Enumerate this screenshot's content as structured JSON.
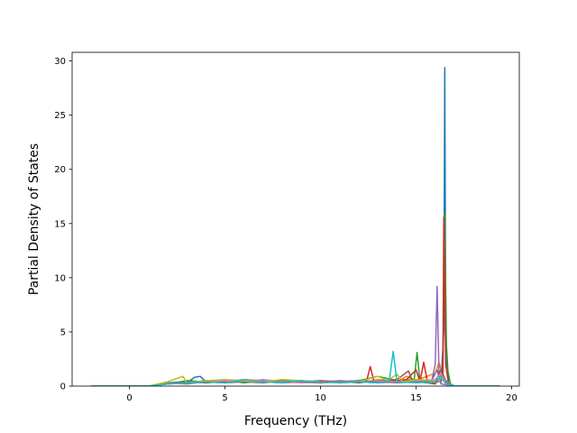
{
  "chart_data": {
    "type": "line",
    "title": "",
    "xlabel": "Frequency (THz)",
    "ylabel": "Partial Density of States",
    "xlim": [
      -3,
      20.4
    ],
    "ylim": [
      0,
      30.8
    ],
    "xticks": [
      0,
      5,
      10,
      15,
      20
    ],
    "yticks": [
      0,
      5,
      10,
      15,
      20,
      25,
      30
    ],
    "grid": false,
    "legend": "none",
    "series": [
      {
        "color": "#1f77b4",
        "points": [
          [
            -2,
            0
          ],
          [
            1,
            0
          ],
          [
            2,
            0.2
          ],
          [
            3,
            0.3
          ],
          [
            3.4,
            0.8
          ],
          [
            3.7,
            0.9
          ],
          [
            4,
            0.4
          ],
          [
            5,
            0.3
          ],
          [
            6,
            0.5
          ],
          [
            7,
            0.4
          ],
          [
            8,
            0.5
          ],
          [
            9,
            0.3
          ],
          [
            10,
            0.4
          ],
          [
            11,
            0.3
          ],
          [
            12,
            0.4
          ],
          [
            13,
            0.3
          ],
          [
            14,
            0.5
          ],
          [
            15,
            0.6
          ],
          [
            15.8,
            0.5
          ],
          [
            16.1,
            1.5
          ],
          [
            16.3,
            0.3
          ],
          [
            16.45,
            5
          ],
          [
            16.5,
            29.4
          ],
          [
            16.55,
            5
          ],
          [
            16.7,
            0.3
          ],
          [
            17,
            0
          ],
          [
            19.4,
            0
          ]
        ]
      },
      {
        "color": "#ff7f0e",
        "points": [
          [
            -2,
            0
          ],
          [
            1,
            0
          ],
          [
            2,
            0.3
          ],
          [
            3,
            0.4
          ],
          [
            4,
            0.3
          ],
          [
            5,
            0.4
          ],
          [
            6,
            0.6
          ],
          [
            7,
            0.5
          ],
          [
            8,
            0.4
          ],
          [
            9,
            0.3
          ],
          [
            10,
            0.4
          ],
          [
            11,
            0.5
          ],
          [
            12,
            0.3
          ],
          [
            13,
            0.6
          ],
          [
            14,
            0.4
          ],
          [
            14.5,
            0.9
          ],
          [
            15,
            0.5
          ],
          [
            16,
            1.2
          ],
          [
            16.2,
            2.2
          ],
          [
            16.4,
            0.8
          ],
          [
            16.6,
            0.2
          ],
          [
            17,
            0
          ],
          [
            19.4,
            0
          ]
        ]
      },
      {
        "color": "#2ca02c",
        "points": [
          [
            -2,
            0
          ],
          [
            1,
            0
          ],
          [
            2,
            0.2
          ],
          [
            3,
            0.5
          ],
          [
            4,
            0.4
          ],
          [
            5,
            0.5
          ],
          [
            6,
            0.3
          ],
          [
            7,
            0.5
          ],
          [
            8,
            0.4
          ],
          [
            9,
            0.5
          ],
          [
            10,
            0.3
          ],
          [
            11,
            0.4
          ],
          [
            12,
            0.5
          ],
          [
            13,
            0.9
          ],
          [
            14,
            0.5
          ],
          [
            14.9,
            0.6
          ],
          [
            15.05,
            3.1
          ],
          [
            15.2,
            0.5
          ],
          [
            16,
            0.4
          ],
          [
            16.4,
            1
          ],
          [
            16.5,
            16
          ],
          [
            16.6,
            2
          ],
          [
            16.8,
            0.2
          ],
          [
            17,
            0
          ],
          [
            19.4,
            0
          ]
        ]
      },
      {
        "color": "#d62728",
        "points": [
          [
            -2,
            0
          ],
          [
            1,
            0
          ],
          [
            2,
            0.3
          ],
          [
            3,
            0.3
          ],
          [
            4,
            0.5
          ],
          [
            5,
            0.4
          ],
          [
            6,
            0.5
          ],
          [
            7,
            0.4
          ],
          [
            8,
            0.3
          ],
          [
            9,
            0.4
          ],
          [
            10,
            0.5
          ],
          [
            11,
            0.4
          ],
          [
            12,
            0.5
          ],
          [
            12.4,
            0.4
          ],
          [
            12.6,
            1.8
          ],
          [
            12.8,
            0.4
          ],
          [
            14,
            0.5
          ],
          [
            14.5,
            0.6
          ],
          [
            15,
            1.5
          ],
          [
            15.2,
            0.4
          ],
          [
            15.4,
            2.2
          ],
          [
            15.6,
            0.3
          ],
          [
            16,
            0.2
          ],
          [
            16.4,
            1.2
          ],
          [
            16.45,
            15.6
          ],
          [
            16.55,
            2
          ],
          [
            16.7,
            0.2
          ],
          [
            17,
            0
          ],
          [
            19.4,
            0
          ]
        ]
      },
      {
        "color": "#9467bd",
        "points": [
          [
            -2,
            0
          ],
          [
            1,
            0
          ],
          [
            2,
            0.2
          ],
          [
            3,
            0.3
          ],
          [
            4,
            0.5
          ],
          [
            5,
            0.3
          ],
          [
            6,
            0.4
          ],
          [
            7,
            0.5
          ],
          [
            8,
            0.3
          ],
          [
            9,
            0.4
          ],
          [
            10,
            0.3
          ],
          [
            11,
            0.5
          ],
          [
            12,
            0.4
          ],
          [
            13,
            0.3
          ],
          [
            14,
            0.4
          ],
          [
            15,
            0.5
          ],
          [
            15.8,
            0.3
          ],
          [
            16.0,
            2
          ],
          [
            16.1,
            9.2
          ],
          [
            16.2,
            1
          ],
          [
            16.3,
            0.2
          ],
          [
            17,
            0
          ],
          [
            19.4,
            0
          ]
        ]
      },
      {
        "color": "#8c564b",
        "points": [
          [
            -2,
            0
          ],
          [
            1,
            0
          ],
          [
            2,
            0.3
          ],
          [
            3,
            0.4
          ],
          [
            4,
            0.3
          ],
          [
            5,
            0.5
          ],
          [
            6,
            0.4
          ],
          [
            7,
            0.3
          ],
          [
            8,
            0.5
          ],
          [
            9,
            0.4
          ],
          [
            10,
            0.3
          ],
          [
            11,
            0.4
          ],
          [
            12,
            0.3
          ],
          [
            13,
            0.5
          ],
          [
            14,
            0.6
          ],
          [
            14.6,
            1.4
          ],
          [
            14.8,
            0.5
          ],
          [
            15.5,
            0.3
          ],
          [
            16,
            0.4
          ],
          [
            16.3,
            1.5
          ],
          [
            16.6,
            0.3
          ],
          [
            17,
            0
          ],
          [
            19.4,
            0
          ]
        ]
      },
      {
        "color": "#e377c2",
        "points": [
          [
            -2,
            0
          ],
          [
            1,
            0
          ],
          [
            2,
            0.2
          ],
          [
            3,
            0.3
          ],
          [
            4,
            0.4
          ],
          [
            5,
            0.5
          ],
          [
            6,
            0.4
          ],
          [
            7,
            0.6
          ],
          [
            8,
            0.4
          ],
          [
            9,
            0.3
          ],
          [
            10,
            0.4
          ],
          [
            11,
            0.3
          ],
          [
            12,
            0.4
          ],
          [
            13,
            0.5
          ],
          [
            14,
            0.4
          ],
          [
            15,
            0.5
          ],
          [
            16,
            0.6
          ],
          [
            16.3,
            1.2
          ],
          [
            16.5,
            0.3
          ],
          [
            17,
            0
          ],
          [
            19.4,
            0
          ]
        ]
      },
      {
        "color": "#7f7f7f",
        "points": [
          [
            -2,
            0
          ],
          [
            1,
            0
          ],
          [
            2,
            0.3
          ],
          [
            3,
            0.2
          ],
          [
            4,
            0.4
          ],
          [
            5,
            0.3
          ],
          [
            6,
            0.4
          ],
          [
            7,
            0.3
          ],
          [
            8,
            0.5
          ],
          [
            9,
            0.4
          ],
          [
            10,
            0.3
          ],
          [
            11,
            0.4
          ],
          [
            12,
            0.5
          ],
          [
            13,
            0.4
          ],
          [
            14,
            0.3
          ],
          [
            15,
            0.4
          ],
          [
            16,
            0.3
          ],
          [
            16.5,
            0.6
          ],
          [
            16.8,
            0.2
          ],
          [
            17,
            0
          ],
          [
            19.4,
            0
          ]
        ]
      },
      {
        "color": "#bcbd22",
        "points": [
          [
            -2,
            0
          ],
          [
            1,
            0
          ],
          [
            2,
            0.4
          ],
          [
            2.8,
            0.9
          ],
          [
            3,
            0.3
          ],
          [
            4,
            0.5
          ],
          [
            5,
            0.6
          ],
          [
            6,
            0.5
          ],
          [
            7,
            0.4
          ],
          [
            8,
            0.6
          ],
          [
            9,
            0.5
          ],
          [
            10,
            0.4
          ],
          [
            11,
            0.3
          ],
          [
            12,
            0.4
          ],
          [
            13,
            0.9
          ],
          [
            13.5,
            0.5
          ],
          [
            14,
            1.1
          ],
          [
            14.3,
            0.4
          ],
          [
            15,
            0.6
          ],
          [
            16,
            0.5
          ],
          [
            16.4,
            0.8
          ],
          [
            16.6,
            0.2
          ],
          [
            17,
            0
          ],
          [
            19.4,
            0
          ]
        ]
      },
      {
        "color": "#17becf",
        "points": [
          [
            -2,
            0
          ],
          [
            1,
            0
          ],
          [
            2,
            0.2
          ],
          [
            3,
            0.3
          ],
          [
            4,
            0.4
          ],
          [
            5,
            0.3
          ],
          [
            6,
            0.6
          ],
          [
            7,
            0.4
          ],
          [
            8,
            0.3
          ],
          [
            9,
            0.5
          ],
          [
            10,
            0.4
          ],
          [
            11,
            0.3
          ],
          [
            12,
            0.4
          ],
          [
            13,
            0.3
          ],
          [
            13.6,
            0.5
          ],
          [
            13.8,
            3.2
          ],
          [
            14.0,
            0.4
          ],
          [
            15,
            0.3
          ],
          [
            16,
            0.4
          ],
          [
            16.3,
            0.9
          ],
          [
            16.6,
            0.2
          ],
          [
            17,
            0
          ],
          [
            19.4,
            0
          ]
        ]
      }
    ]
  }
}
